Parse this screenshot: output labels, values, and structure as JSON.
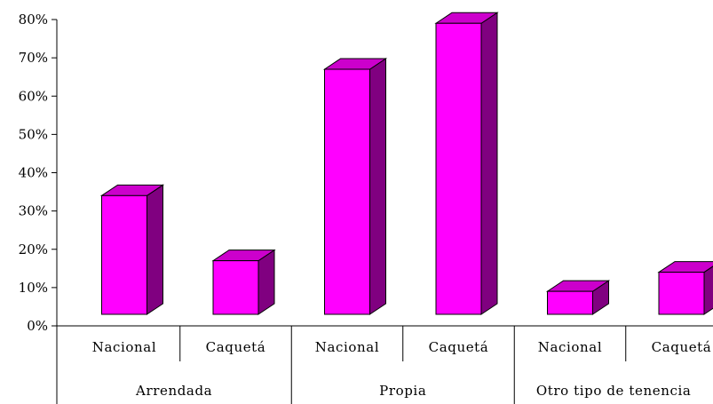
{
  "chart_data": {
    "type": "bar",
    "style": "3d-column",
    "groups": [
      {
        "label": "Arrendada",
        "categories": [
          "Nacional",
          "Caquetá"
        ]
      },
      {
        "label": "Propia",
        "categories": [
          "Nacional",
          "Caquetá"
        ]
      },
      {
        "label": "Otro tipo de tenencia",
        "categories": [
          "Nacional",
          "Caquetá"
        ]
      }
    ],
    "values": [
      31,
      14,
      64,
      76,
      6,
      11
    ],
    "ylim": [
      0,
      80
    ],
    "yticks": [
      "0%",
      "10%",
      "20%",
      "30%",
      "40%",
      "50%",
      "60%",
      "70%",
      "80%"
    ],
    "title": "",
    "xlabel": "",
    "ylabel": "",
    "legend": "none",
    "grid": false,
    "colors": {
      "bar_front": "#ff00ff",
      "bar_top": "#cc00cc",
      "bar_side": "#800080"
    }
  }
}
